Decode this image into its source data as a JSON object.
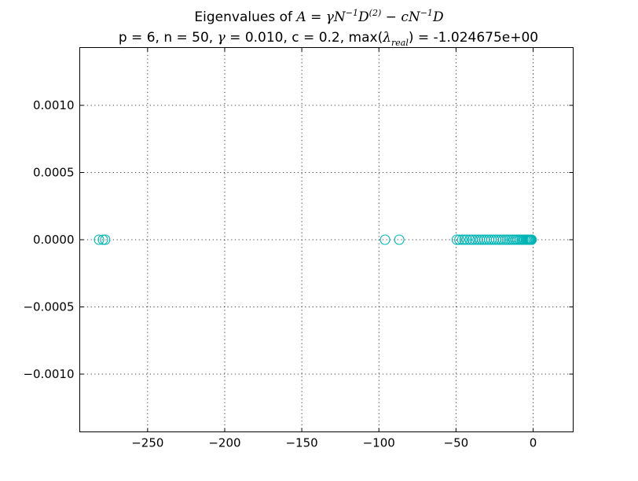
{
  "chart_data": {
    "type": "scatter",
    "title_line1_prefix": "Eigenvalues of ",
    "title_line1_math": [
      "A",
      " = ",
      "γ",
      "N",
      "−1",
      "D",
      "(2)",
      " − ",
      "c",
      "N",
      "−1",
      "D"
    ],
    "title_line2_a": "p = 6, n = 50, ",
    "title_line2_gamma": "γ",
    "title_line2_b": " = 0.010, c = 0.2, max(",
    "title_line2_lambda": "λ",
    "title_line2_sub": "real",
    "title_line2_c": ") = -1.024675e+00",
    "xlim": [
      -294,
      26
    ],
    "ylim": [
      -0.00143,
      0.00143
    ],
    "x_ticks": [
      -250,
      -200,
      -150,
      -100,
      -50,
      0
    ],
    "x_tick_labels": [
      "−250",
      "−200",
      "−150",
      "−100",
      "−50",
      "0"
    ],
    "y_ticks": [
      0.001,
      0.0005,
      0.0,
      -0.0005,
      -0.001
    ],
    "y_tick_labels": [
      "0.0010",
      "0.0005",
      "0.0000",
      "−0.0005",
      "−0.0010"
    ],
    "grid": true,
    "marker_color": "#00b5b5",
    "series": [
      {
        "x": [
          -281.5,
          -279.0,
          -277.5,
          -96.0,
          -86.8,
          -49.5,
          -47.8,
          -46.0,
          -44.5,
          -43.0,
          -41.0,
          -39.3,
          -37.5,
          -36.0,
          -34.5,
          -33.0,
          -31.5,
          -30.0,
          -28.5,
          -27.0,
          -25.5,
          -24.0,
          -22.5,
          -21.0,
          -19.5,
          -18.0,
          -16.7,
          -15.4,
          -14.1,
          -12.8,
          -11.6,
          -10.4,
          -9.3,
          -8.2,
          -7.2,
          -6.3,
          -5.4,
          -4.6,
          -3.9,
          -3.3,
          -2.8,
          -2.4,
          -2.0,
          -1.7,
          -1.4,
          -1.2,
          -1.1,
          -1.05,
          -1.03,
          -1.024675
        ],
        "y": [
          0,
          0,
          0,
          0,
          0,
          0,
          0,
          0,
          0,
          0,
          0,
          0,
          0,
          0,
          0,
          0,
          0,
          0,
          0,
          0,
          0,
          0,
          0,
          0,
          0,
          0,
          0,
          0,
          0,
          0,
          0,
          0,
          0,
          0,
          0,
          0,
          0,
          0,
          0,
          0,
          0,
          0,
          0,
          0,
          0,
          0,
          0,
          0,
          0,
          0
        ]
      }
    ]
  }
}
